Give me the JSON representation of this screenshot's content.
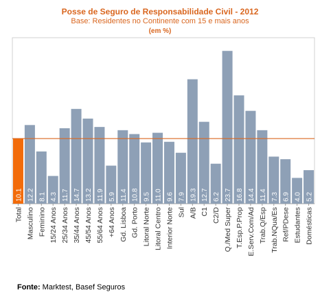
{
  "chart_data": {
    "type": "bar",
    "title": "Posse de Seguro de Responsabilidade Civil - 2012",
    "subtitle": "Base: Residentes no Continente com 15 e mais anos",
    "unit_note": "(em %)",
    "categories": [
      "Total",
      "Masculino",
      "Feminino",
      "15/24 Anos",
      "25/34 Anos",
      "35/44 Anos",
      "45/54 Anos",
      "55/64 Anos",
      "+64 Anos",
      "Gd. Lisboa",
      "Gd. Porto",
      "Litoral Norte",
      "Litoral Centro",
      "Interior Norte",
      "Sul",
      "A/B",
      "C1",
      "C2/D",
      "Q./Med Super",
      "T.Esp.P.Prop",
      "E.Serv.Com/Ad",
      "Trab.Q/Esp",
      "Trab.NQua/Es",
      "Ref/PDese",
      "Estudantes",
      "Domésticas"
    ],
    "values": [
      10.1,
      12.2,
      8.1,
      4.3,
      11.7,
      14.7,
      13.2,
      11.9,
      5.9,
      11.4,
      10.8,
      9.5,
      11.0,
      9.6,
      7.9,
      19.3,
      12.7,
      6.2,
      23.7,
      16.8,
      14.4,
      11.4,
      7.3,
      6.9,
      4.0,
      5.2
    ],
    "value_labels": [
      "10.1",
      "12.2",
      "8.1",
      "4.3",
      "11.7",
      "14.7",
      "13.2",
      "11.9",
      "5.9",
      "11.4",
      "10.8",
      "9.5",
      "11.0",
      "9.6",
      "7.9",
      "19.3",
      "12.7",
      "6.2",
      "23.7",
      "16.8",
      "14.4",
      "11.4",
      "7.3",
      "6.9",
      "4.0",
      "5.2"
    ],
    "highlight_category": "Total",
    "reference_line": 10.1,
    "ylim": [
      0,
      25
    ],
    "grid": false,
    "colors": {
      "bar": "#8ea0b6",
      "highlight": "#f26b0a",
      "line": "#d9661f",
      "title": "#d9661f"
    }
  },
  "source": {
    "label": "Fonte:",
    "text": "Marktest, Basef Seguros"
  }
}
